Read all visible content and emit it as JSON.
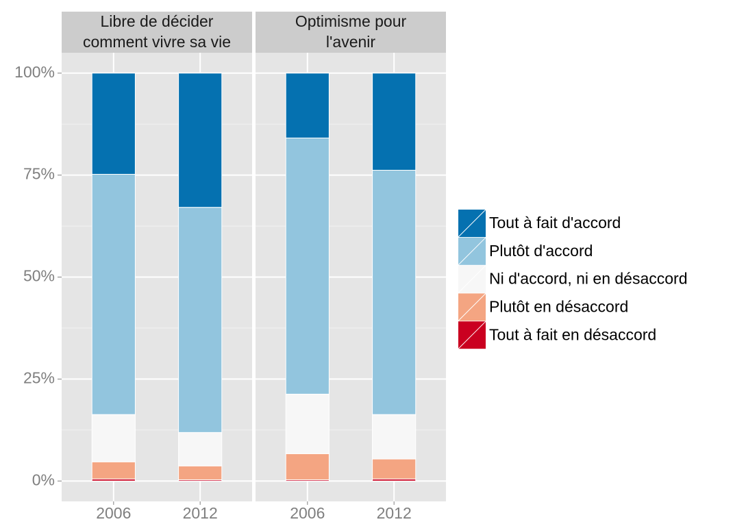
{
  "chart_data": {
    "type": "bar",
    "stacked": true,
    "series": [
      {
        "name": "Tout à fait d'accord",
        "color": "#0571b0"
      },
      {
        "name": "Plutôt d'accord",
        "color": "#92c5de"
      },
      {
        "name": "Ni d'accord, ni en désaccord",
        "color": "#f7f7f7"
      },
      {
        "name": "Plutôt en désaccord",
        "color": "#f4a582"
      },
      {
        "name": "Tout à fait en désaccord",
        "color": "#ca0020"
      }
    ],
    "facets": [
      {
        "title": [
          "Libre de décider",
          "comment vivre sa vie"
        ],
        "categories": [
          "2006",
          "2012"
        ],
        "values": [
          [
            24.8,
            32.9
          ],
          [
            58.9,
            55.2
          ],
          [
            11.6,
            8.2
          ],
          [
            4.2,
            3.4
          ],
          [
            0.5,
            0.3
          ]
        ]
      },
      {
        "title": [
          "Optimisme pour",
          "l'avenir"
        ],
        "categories": [
          "2006",
          "2012"
        ],
        "values": [
          [
            15.9,
            23.8
          ],
          [
            62.8,
            59.9
          ],
          [
            14.6,
            10.9
          ],
          [
            6.4,
            4.9
          ],
          [
            0.3,
            0.5
          ]
        ]
      }
    ],
    "ylim": [
      -5,
      105
    ],
    "yticks": [
      {
        "value": 0,
        "label": "0%"
      },
      {
        "value": 25,
        "label": "25%"
      },
      {
        "value": 50,
        "label": "50%"
      },
      {
        "value": 75,
        "label": "75%"
      },
      {
        "value": 100,
        "label": "100%"
      }
    ],
    "grid": true
  }
}
